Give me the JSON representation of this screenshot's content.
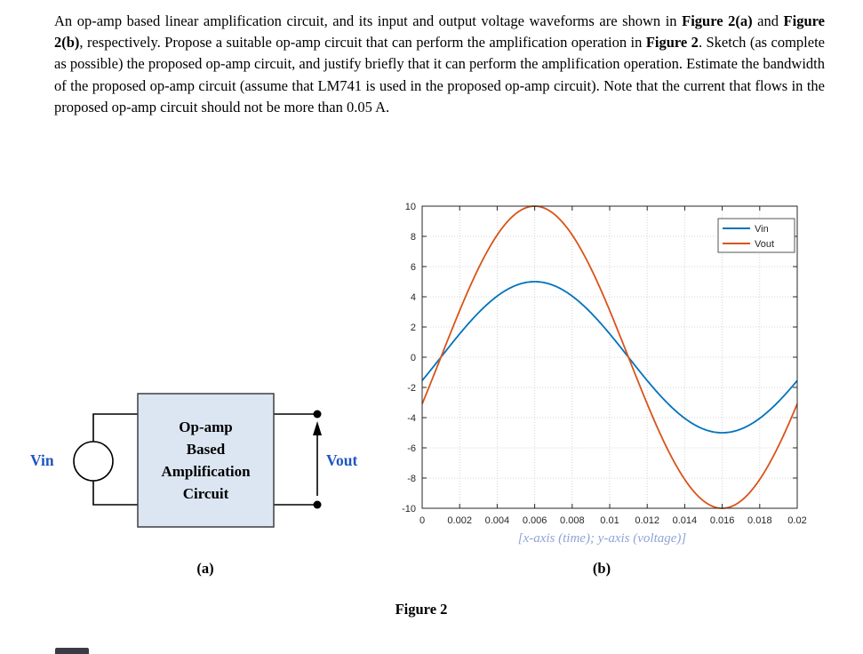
{
  "colors": {
    "label_blue": "#1f56c0",
    "box_fill": "#dce6f2",
    "box_border": "#3f3f3f",
    "axis_note": "#8fa3d8",
    "vin_line": "#0072BD",
    "vout_line": "#D95319"
  },
  "problem": {
    "p1": "An op-amp based linear amplification circuit, and its input and output voltage waveforms are shown in ",
    "b1": "Figure 2(a)",
    "p2": " and ",
    "b2": "Figure 2(b)",
    "p3": ", respectively. Propose a suitable op-amp circuit that can perform the amplification operation in ",
    "b3": "Figure 2",
    "p4": ". Sketch (as complete as possible) the proposed op-amp circuit, and justify briefly that it can perform the amplification operation. Estimate the bandwidth of the proposed op-amp circuit (assume that LM741 is used in the proposed op-amp circuit). Note that the current that flows in the proposed op-amp circuit should not be more than 0.05 A."
  },
  "diagram": {
    "vin_label": "Vin",
    "vout_label": "Vout",
    "box_line1": "Op-amp",
    "box_line2": "Based",
    "box_line3": "Amplification",
    "box_line4": "Circuit",
    "caption": "(a)"
  },
  "chart": {
    "axis_note": "[x-axis (time); y-axis (voltage)]",
    "caption": "(b)"
  },
  "figure_caption": "Figure 2",
  "chart_data": {
    "type": "line",
    "title": "",
    "xlabel": "",
    "ylabel": "",
    "xlim": [
      0,
      0.02
    ],
    "ylim": [
      -10,
      10
    ],
    "xticks": [
      0,
      0.002,
      0.004,
      0.006,
      0.008,
      0.01,
      0.012,
      0.014,
      0.016,
      0.018,
      0.02
    ],
    "xtick_labels": [
      "0",
      "0.002",
      "0.004",
      "0.006",
      "0.008",
      "0.01",
      "0.012",
      "0.014",
      "0.016",
      "0.018",
      "0.02"
    ],
    "yticks": [
      -10,
      -8,
      -6,
      -4,
      -2,
      0,
      2,
      4,
      6,
      8,
      10
    ],
    "grid": true,
    "legend_position": "top-right",
    "x_sample": [
      0,
      0.001,
      0.002,
      0.003,
      0.004,
      0.005,
      0.006,
      0.007,
      0.008,
      0.009,
      0.01,
      0.011,
      0.012,
      0.013,
      0.014,
      0.015,
      0.016,
      0.017,
      0.018,
      0.019,
      0.02
    ],
    "series": [
      {
        "name": "Vin",
        "color": "#0072BD",
        "waveform": "sine",
        "amplitude": 5,
        "frequency_hz": 50,
        "phase_rad": -0.314159265,
        "values": [
          -1.55,
          0,
          1.55,
          2.94,
          4.05,
          4.76,
          5,
          4.76,
          4.05,
          2.94,
          1.55,
          0,
          -1.55,
          -2.94,
          -4.05,
          -4.76,
          -5,
          -4.76,
          -4.05,
          -2.94,
          -1.55
        ]
      },
      {
        "name": "Vout",
        "color": "#D95319",
        "waveform": "sine",
        "amplitude": 10,
        "frequency_hz": 50,
        "phase_rad": -0.314159265,
        "values": [
          -3.09,
          0,
          3.09,
          5.88,
          8.09,
          9.51,
          10,
          9.51,
          8.09,
          5.88,
          3.09,
          0,
          -3.09,
          -5.88,
          -8.09,
          -9.51,
          -10,
          -9.51,
          -8.09,
          -5.88,
          -3.09
        ]
      }
    ]
  }
}
